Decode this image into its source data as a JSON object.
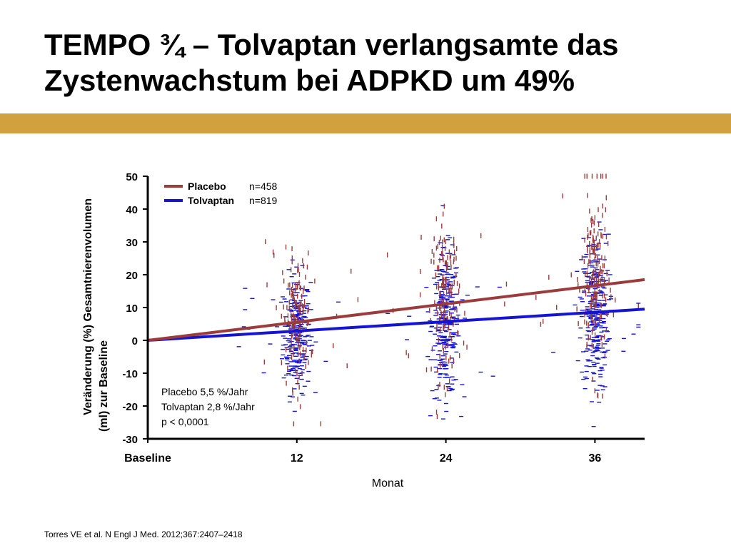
{
  "slide": {
    "title_line1": "TEMPO ¾ – Tolvaptan verlangsamte das",
    "title_line2": "Zystenwachstum bei ADPKD um 49%",
    "accent_color": "#d1a03f",
    "citation": "Torres VE et al. N Engl J Med. 2012;367:2407–2418"
  },
  "chart_data": {
    "type": "scatter",
    "title": "",
    "ylabel_line1": "Veränderung (%) Gesamtnierenvolumen",
    "ylabel_line2": "(ml) zur Baseline",
    "xlabel": "Monat",
    "xlim": [
      0,
      40
    ],
    "ylim": [
      -30,
      50
    ],
    "x_ticks": [
      {
        "value": 0,
        "label": "Baseline"
      },
      {
        "value": 12,
        "label": "12"
      },
      {
        "value": 24,
        "label": "24"
      },
      {
        "value": 36,
        "label": "36"
      }
    ],
    "y_ticks": [
      50,
      40,
      30,
      20,
      10,
      0,
      -10,
      -20,
      -30
    ],
    "grid": false,
    "legend_position": "top-left",
    "series": [
      {
        "name": "Placebo",
        "n_label": "n=458",
        "color": "#9b3b3b",
        "marker": "vertical-dash",
        "trend": {
          "x": [
            0,
            40
          ],
          "y": [
            0,
            18.5
          ]
        },
        "clusters": [
          {
            "x": 12,
            "y_mean": 6,
            "y_sd": 10
          },
          {
            "x": 24,
            "y_mean": 12,
            "y_sd": 12
          },
          {
            "x": 36,
            "y_mean": 18,
            "y_sd": 14
          }
        ]
      },
      {
        "name": "Tolvaptan",
        "n_label": "n=819",
        "color": "#1414d2",
        "marker": "horizontal-dash",
        "trend": {
          "x": [
            0,
            40
          ],
          "y": [
            0,
            9.5
          ]
        },
        "clusters": [
          {
            "x": 12,
            "y_mean": 2,
            "y_sd": 9
          },
          {
            "x": 24,
            "y_mean": 5,
            "y_sd": 11
          },
          {
            "x": 36,
            "y_mean": 8,
            "y_sd": 12
          }
        ]
      }
    ],
    "annotation_lines": [
      "Placebo 5,5 %/Jahr",
      "Tolvaptan 2,8 %/Jahr",
      "p < 0,0001"
    ]
  }
}
